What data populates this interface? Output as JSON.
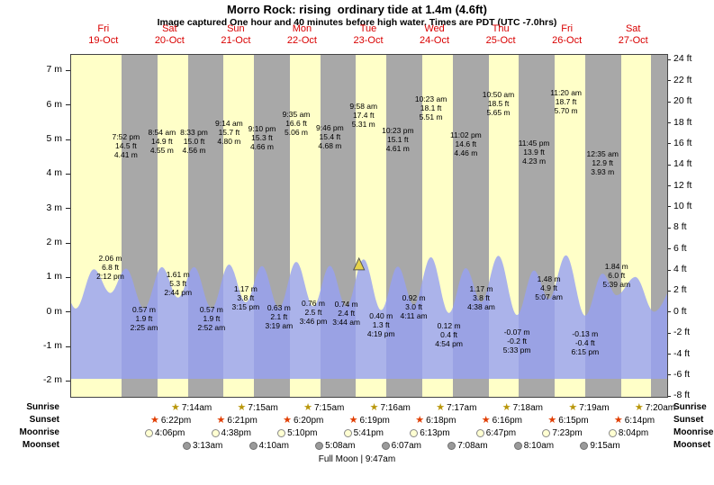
{
  "title": "Morro Rock: rising  ordinary tide at 1.4m (4.6ft)",
  "subtitle": "Image captured One hour and 40 minutes before high water. Times are PDT (UTC -7.0hrs)",
  "days": [
    {
      "weekday": "Fri",
      "date": "19-Oct"
    },
    {
      "weekday": "Sat",
      "date": "20-Oct"
    },
    {
      "weekday": "Sun",
      "date": "21-Oct"
    },
    {
      "weekday": "Mon",
      "date": "22-Oct"
    },
    {
      "weekday": "Tue",
      "date": "23-Oct"
    },
    {
      "weekday": "Wed",
      "date": "24-Oct"
    },
    {
      "weekday": "Thu",
      "date": "25-Oct"
    },
    {
      "weekday": "Fri",
      "date": "26-Oct"
    },
    {
      "weekday": "Sat",
      "date": "27-Oct"
    }
  ],
  "axes": {
    "left_unit": "m",
    "right_unit": "ft",
    "left_ticks": [
      {
        "value": 7,
        "label": "7 m"
      },
      {
        "value": 6,
        "label": "6 m"
      },
      {
        "value": 5,
        "label": "5 m"
      },
      {
        "value": 4,
        "label": "4 m"
      },
      {
        "value": 3,
        "label": "3 m"
      },
      {
        "value": 2,
        "label": "2 m"
      },
      {
        "value": 1,
        "label": "1 m"
      },
      {
        "value": 0,
        "label": "0 m"
      },
      {
        "value": -1,
        "label": "-1 m"
      },
      {
        "value": -2,
        "label": "-2 m"
      }
    ],
    "right_ticks": [
      {
        "value": 24,
        "label": "24 ft"
      },
      {
        "value": 22,
        "label": "22 ft"
      },
      {
        "value": 20,
        "label": "20 ft"
      },
      {
        "value": 18,
        "label": "18 ft"
      },
      {
        "value": 16,
        "label": "16 ft"
      },
      {
        "value": 14,
        "label": "14 ft"
      },
      {
        "value": 12,
        "label": "12 ft"
      },
      {
        "value": 10,
        "label": "10 ft"
      },
      {
        "value": 8,
        "label": "8 ft"
      },
      {
        "value": 6,
        "label": "6 ft"
      },
      {
        "value": 4,
        "label": "4 ft"
      },
      {
        "value": 2,
        "label": "2 ft"
      },
      {
        "value": 0,
        "label": "0 ft"
      },
      {
        "value": -2,
        "label": "-2 ft"
      },
      {
        "value": -4,
        "label": "-4 ft"
      },
      {
        "value": -6,
        "label": "-6 ft"
      },
      {
        "value": -8,
        "label": "-8 ft"
      }
    ]
  },
  "chart_data": {
    "type": "area",
    "series_name": "tide height",
    "x_unit": "days",
    "ylim_m": [
      -2.4,
      7.4
    ],
    "current_tide": {
      "height_m": 1.4,
      "height_ft": 4.6,
      "day_index": 4,
      "time": "8:18 am",
      "marker": "yellow-triangle"
    },
    "tide_events": [
      {
        "day_index": 0,
        "type": "low",
        "time": "2:12 pm",
        "height_m": 2.06,
        "height_ft": 6.8
      },
      {
        "day_index": 0,
        "type": "high",
        "time": "7:52 pm",
        "height_m": 4.41,
        "height_ft": 14.5
      },
      {
        "day_index": 1,
        "type": "low",
        "time": "2:25 am",
        "height_m": 0.57,
        "height_ft": 1.9
      },
      {
        "day_index": 1,
        "type": "high",
        "time": "8:54 am",
        "height_m": 4.55,
        "height_ft": 14.9
      },
      {
        "day_index": 1,
        "type": "low",
        "time": "2:44 pm",
        "height_m": 1.61,
        "height_ft": 5.3
      },
      {
        "day_index": 1,
        "type": "high",
        "time": "8:33 pm",
        "height_m": 4.56,
        "height_ft": 15.0
      },
      {
        "day_index": 2,
        "type": "low",
        "time": "2:52 am",
        "height_m": 0.57,
        "height_ft": 1.9
      },
      {
        "day_index": 2,
        "type": "high",
        "time": "9:14 am",
        "height_m": 4.8,
        "height_ft": 15.7
      },
      {
        "day_index": 2,
        "type": "low",
        "time": "3:15 pm",
        "height_m": 1.17,
        "height_ft": 3.8
      },
      {
        "day_index": 2,
        "type": "high",
        "time": "9:10 pm",
        "height_m": 4.66,
        "height_ft": 15.3
      },
      {
        "day_index": 3,
        "type": "low",
        "time": "3:19 am",
        "height_m": 0.63,
        "height_ft": 2.1
      },
      {
        "day_index": 3,
        "type": "high",
        "time": "9:35 am",
        "height_m": 5.06,
        "height_ft": 16.6
      },
      {
        "day_index": 3,
        "type": "low",
        "time": "3:46 pm",
        "height_m": 0.76,
        "height_ft": 2.5
      },
      {
        "day_index": 3,
        "type": "high",
        "time": "9:46 pm",
        "height_m": 4.68,
        "height_ft": 15.4
      },
      {
        "day_index": 4,
        "type": "low",
        "time": "3:44 am",
        "height_m": 0.74,
        "height_ft": 2.4
      },
      {
        "day_index": 4,
        "type": "high",
        "time": "9:58 am",
        "height_m": 5.31,
        "height_ft": 17.4
      },
      {
        "day_index": 4,
        "type": "low",
        "time": "4:19 pm",
        "height_m": 0.4,
        "height_ft": 1.3
      },
      {
        "day_index": 4,
        "type": "high",
        "time": "10:23 pm",
        "height_m": 4.61,
        "height_ft": 15.1
      },
      {
        "day_index": 5,
        "type": "low",
        "time": "4:11 am",
        "height_m": 0.92,
        "height_ft": 3.0
      },
      {
        "day_index": 5,
        "type": "high",
        "time": "10:23 am",
        "height_m": 5.51,
        "height_ft": 18.1
      },
      {
        "day_index": 5,
        "type": "low",
        "time": "4:54 pm",
        "height_m": 0.12,
        "height_ft": 0.4
      },
      {
        "day_index": 5,
        "type": "high",
        "time": "11:02 pm",
        "height_m": 4.46,
        "height_ft": 14.6
      },
      {
        "day_index": 6,
        "type": "low",
        "time": "4:38 am",
        "height_m": 1.17,
        "height_ft": 3.8
      },
      {
        "day_index": 6,
        "type": "high",
        "time": "10:50 am",
        "height_m": 5.65,
        "height_ft": 18.5
      },
      {
        "day_index": 6,
        "type": "low",
        "time": "5:33 pm",
        "height_m": -0.07,
        "height_ft": -0.2
      },
      {
        "day_index": 6,
        "type": "high",
        "time": "11:45 pm",
        "height_m": 4.23,
        "height_ft": 13.9
      },
      {
        "day_index": 7,
        "type": "low",
        "time": "5:07 am",
        "height_m": 1.48,
        "height_ft": 4.9
      },
      {
        "day_index": 7,
        "type": "high",
        "time": "11:20 am",
        "height_m": 5.7,
        "height_ft": 18.7
      },
      {
        "day_index": 7,
        "type": "low",
        "time": "6:15 pm",
        "height_m": -0.13,
        "height_ft": -0.4
      },
      {
        "day_index": 8,
        "type": "high",
        "time": "12:35 am",
        "height_m": 3.93,
        "height_ft": 12.9
      },
      {
        "day_index": 8,
        "type": "low",
        "time": "5:39 am",
        "height_m": 1.84,
        "height_ft": 6.0
      }
    ]
  },
  "astro": {
    "rows": [
      {
        "id": "sunrise",
        "label": "Sunrise",
        "icon": "sunrise-star",
        "times": [
          "7:14am",
          "7:15am",
          "7:15am",
          "7:16am",
          "7:17am",
          "7:18am",
          "7:19am",
          "7:20am"
        ]
      },
      {
        "id": "sunset",
        "label": "Sunset",
        "icon": "sunset-star",
        "times": [
          "6:22pm",
          "6:21pm",
          "6:20pm",
          "6:19pm",
          "6:18pm",
          "6:16pm",
          "6:15pm",
          "6:14pm"
        ]
      },
      {
        "id": "moonrise",
        "label": "Moonrise",
        "icon": "moonrise-circle",
        "times": [
          "4:06pm",
          "4:38pm",
          "5:10pm",
          "5:41pm",
          "6:13pm",
          "6:47pm",
          "7:23pm",
          "8:04pm"
        ]
      },
      {
        "id": "moonset",
        "label": "Moonset",
        "icon": "moonset-circle",
        "times": [
          "3:13am",
          "4:10am",
          "5:08am",
          "6:07am",
          "7:08am",
          "8:10am",
          "9:15am"
        ]
      }
    ],
    "footer": "Full Moon | 9:47am"
  },
  "colors": {
    "day_bg": "#ffffc8",
    "night_band": "#a8a8a8",
    "tide_fill": "#96a0f2",
    "day_label": "#d90000",
    "marker_fill": "#e6d24a"
  }
}
